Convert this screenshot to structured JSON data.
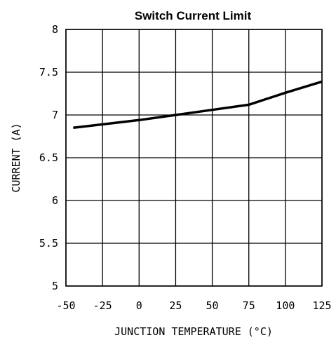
{
  "chart_data": {
    "type": "line",
    "title": "Switch Current Limit",
    "xlabel": "JUNCTION TEMPERATURE (°C)",
    "ylabel": "CURRENT (A)",
    "xlim": [
      -50,
      125
    ],
    "ylim": [
      5,
      8
    ],
    "xticks": [
      "-50",
      "-25",
      "0",
      "25",
      "50",
      "75",
      "100",
      "125"
    ],
    "yticks": [
      "5",
      "5.5",
      "6",
      "6.5",
      "7",
      "7.5",
      "8"
    ],
    "grid": true,
    "series": [
      {
        "x": [
          -45,
          0,
          25,
          50,
          75,
          100,
          125
        ],
        "y": [
          6.85,
          6.94,
          7.0,
          7.06,
          7.12,
          7.26,
          7.39
        ]
      }
    ]
  }
}
